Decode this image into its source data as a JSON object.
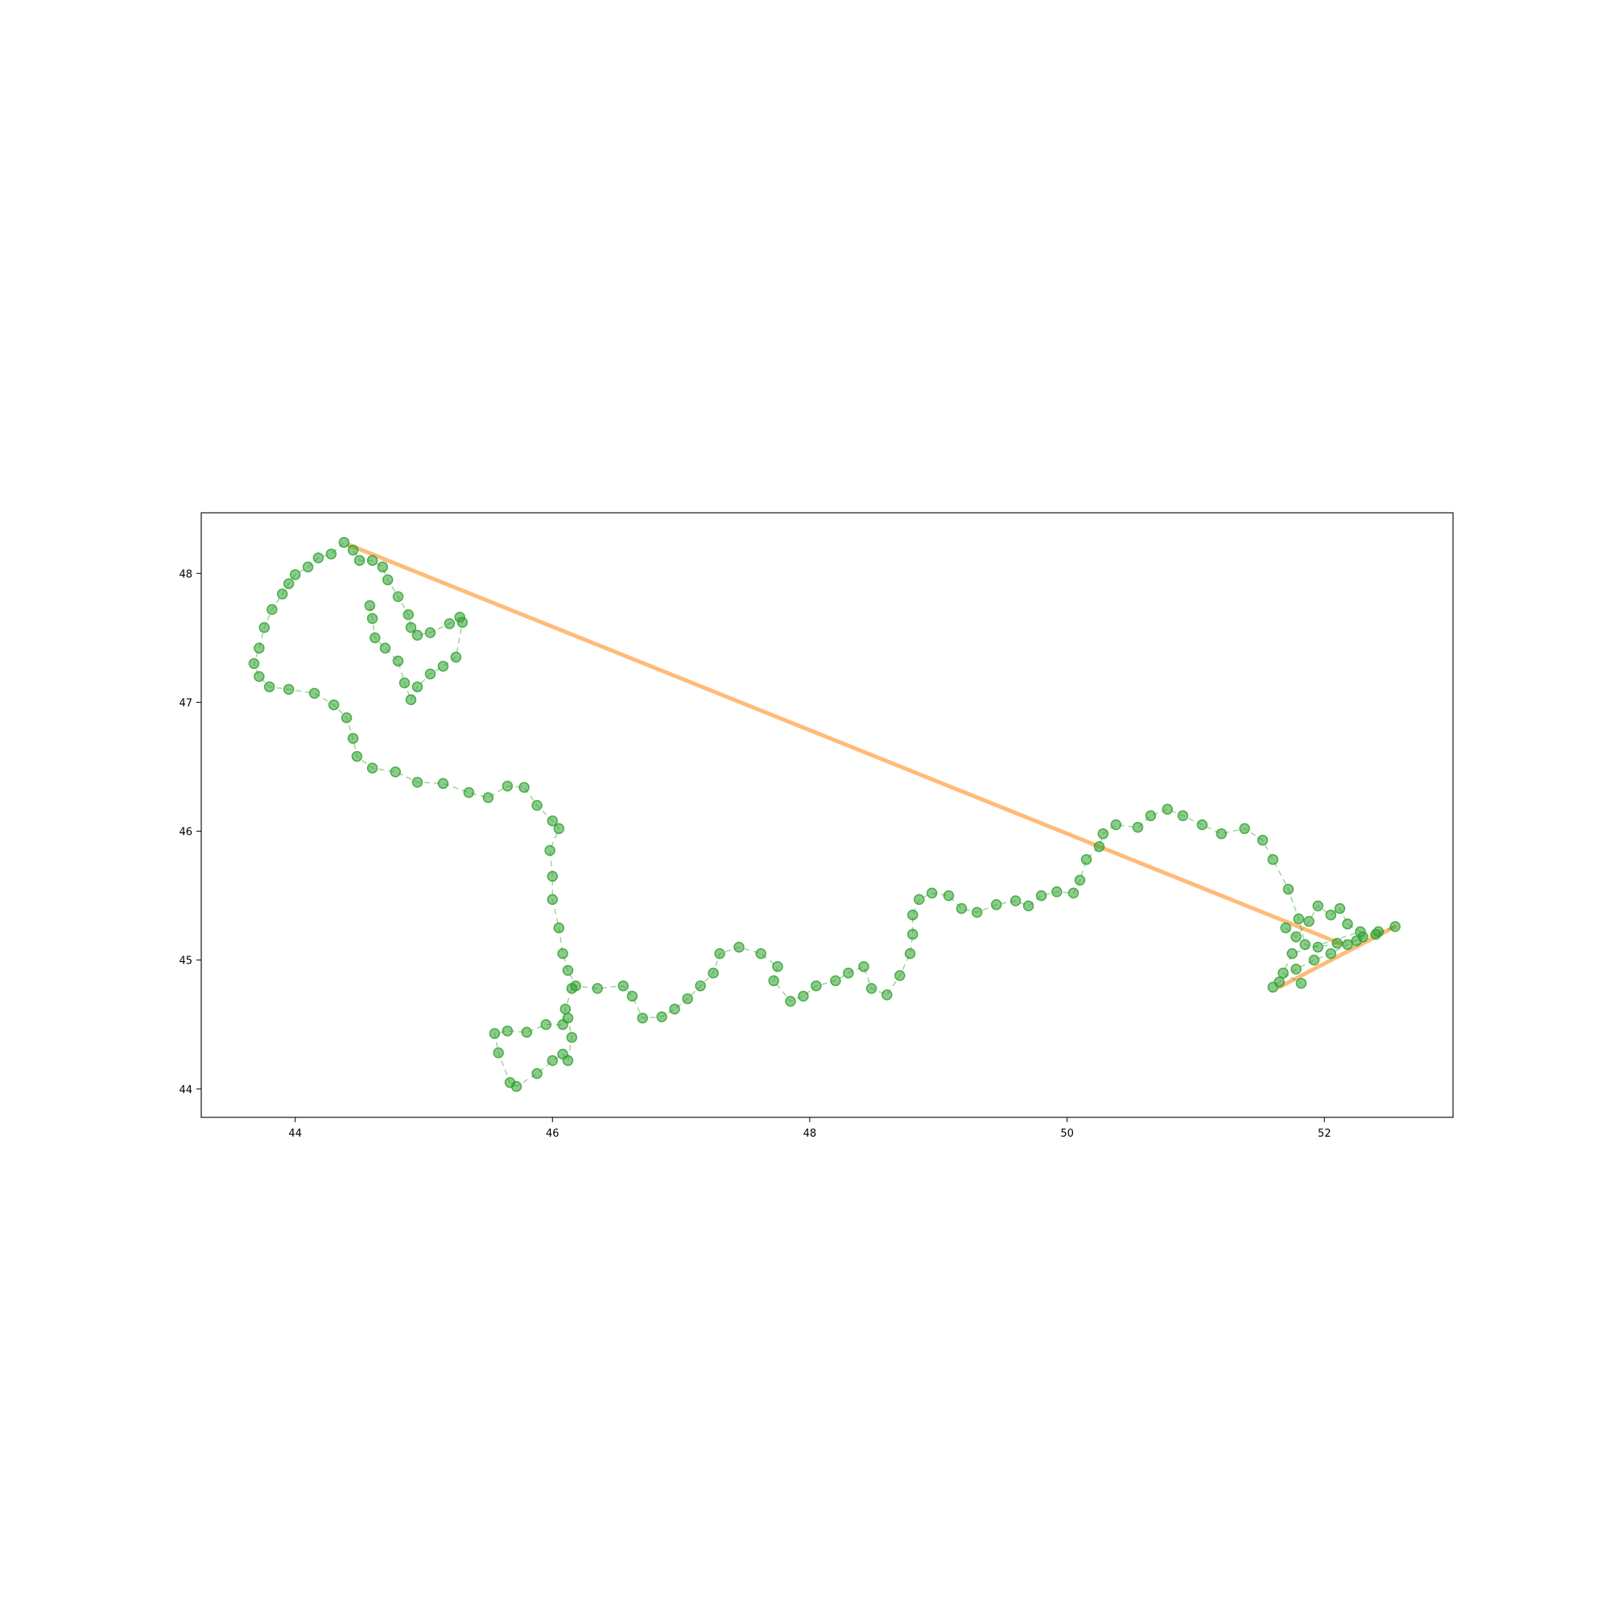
{
  "chart_data": {
    "type": "scatter",
    "title": "",
    "xlabel": "",
    "ylabel": "",
    "xlim": [
      43.27,
      53.0
    ],
    "ylim": [
      43.78,
      48.47
    ],
    "x_ticks": [
      44,
      46,
      48,
      50,
      52
    ],
    "y_ticks": [
      44,
      45,
      46,
      47,
      48
    ],
    "x_tick_labels": [
      "44",
      "46",
      "48",
      "50",
      "52"
    ],
    "y_tick_labels": [
      "44",
      "45",
      "46",
      "47",
      "48"
    ],
    "grid": false,
    "legend": "none",
    "colors": {
      "track": "#2ca02c",
      "straight_line": "#ffbb78",
      "frame": "#000000"
    },
    "series": [
      {
        "kind": "line",
        "points": [
          [
            44.42,
            48.22
          ],
          [
            52.12,
            45.13
          ]
        ]
      },
      {
        "kind": "line",
        "points": [
          [
            51.65,
            44.79
          ],
          [
            52.55,
            45.26
          ]
        ]
      },
      {
        "kind": "scatter-line",
        "points": [
          [
            45.28,
            47.66
          ],
          [
            45.2,
            47.61
          ],
          [
            45.05,
            47.54
          ],
          [
            44.95,
            47.52
          ],
          [
            44.9,
            47.58
          ],
          [
            44.88,
            47.68
          ],
          [
            44.8,
            47.82
          ],
          [
            44.72,
            47.95
          ],
          [
            44.68,
            48.05
          ],
          [
            44.6,
            48.1
          ],
          [
            44.5,
            48.1
          ],
          [
            44.45,
            48.18
          ],
          [
            44.38,
            48.24
          ],
          [
            44.28,
            48.15
          ],
          [
            44.18,
            48.12
          ],
          [
            44.1,
            48.05
          ],
          [
            44.0,
            47.99
          ],
          [
            43.95,
            47.92
          ],
          [
            43.9,
            47.84
          ],
          [
            43.82,
            47.72
          ],
          [
            43.76,
            47.58
          ],
          [
            43.72,
            47.42
          ],
          [
            43.68,
            47.3
          ],
          [
            43.72,
            47.2
          ],
          [
            43.8,
            47.12
          ],
          [
            43.95,
            47.1
          ],
          [
            44.15,
            47.07
          ],
          [
            44.3,
            46.98
          ],
          [
            44.4,
            46.88
          ],
          [
            44.45,
            46.72
          ],
          [
            44.48,
            46.58
          ],
          [
            44.6,
            46.49
          ],
          [
            44.78,
            46.46
          ],
          [
            44.95,
            46.38
          ],
          [
            45.15,
            46.37
          ],
          [
            45.35,
            46.3
          ],
          [
            45.5,
            46.26
          ],
          [
            45.65,
            46.35
          ],
          [
            45.78,
            46.34
          ],
          [
            45.88,
            46.2
          ],
          [
            46.0,
            46.08
          ],
          [
            46.05,
            46.02
          ],
          [
            45.98,
            45.85
          ],
          [
            46.0,
            45.65
          ],
          [
            46.0,
            45.47
          ],
          [
            46.05,
            45.25
          ],
          [
            46.08,
            45.05
          ],
          [
            46.12,
            44.92
          ],
          [
            46.18,
            44.8
          ],
          [
            46.35,
            44.78
          ],
          [
            46.55,
            44.8
          ],
          [
            46.62,
            44.72
          ],
          [
            46.7,
            44.55
          ],
          [
            46.85,
            44.56
          ],
          [
            46.95,
            44.62
          ],
          [
            47.05,
            44.7
          ],
          [
            47.15,
            44.8
          ],
          [
            47.25,
            44.9
          ],
          [
            47.3,
            45.05
          ],
          [
            47.45,
            45.1
          ],
          [
            47.62,
            45.05
          ],
          [
            47.75,
            44.95
          ],
          [
            47.72,
            44.84
          ],
          [
            47.85,
            44.68
          ],
          [
            47.95,
            44.72
          ],
          [
            48.05,
            44.8
          ],
          [
            48.2,
            44.84
          ],
          [
            48.3,
            44.9
          ],
          [
            48.42,
            44.95
          ],
          [
            48.48,
            44.78
          ],
          [
            48.6,
            44.73
          ],
          [
            48.7,
            44.88
          ],
          [
            48.78,
            45.05
          ],
          [
            48.8,
            45.2
          ],
          [
            48.8,
            45.35
          ],
          [
            48.85,
            45.47
          ],
          [
            48.95,
            45.52
          ],
          [
            49.08,
            45.5
          ],
          [
            49.18,
            45.4
          ],
          [
            49.3,
            45.37
          ],
          [
            49.45,
            45.43
          ],
          [
            49.6,
            45.46
          ],
          [
            49.7,
            45.42
          ],
          [
            49.8,
            45.5
          ],
          [
            49.92,
            45.53
          ],
          [
            50.05,
            45.52
          ],
          [
            50.1,
            45.62
          ],
          [
            50.15,
            45.78
          ],
          [
            50.25,
            45.88
          ],
          [
            50.28,
            45.98
          ],
          [
            50.38,
            46.05
          ],
          [
            50.55,
            46.03
          ],
          [
            50.65,
            46.12
          ],
          [
            50.78,
            46.17
          ],
          [
            50.9,
            46.12
          ],
          [
            51.05,
            46.05
          ],
          [
            51.2,
            45.98
          ],
          [
            51.38,
            46.02
          ],
          [
            51.52,
            45.93
          ],
          [
            51.6,
            45.78
          ],
          [
            51.72,
            45.55
          ],
          [
            51.8,
            45.32
          ],
          [
            51.85,
            45.12
          ],
          [
            51.95,
            45.1
          ],
          [
            52.1,
            45.13
          ],
          [
            52.25,
            45.15
          ],
          [
            52.4,
            45.2
          ],
          [
            52.55,
            45.26
          ],
          [
            52.42,
            45.22
          ],
          [
            52.3,
            45.18
          ],
          [
            52.18,
            45.12
          ],
          [
            52.05,
            45.05
          ],
          [
            51.92,
            45.0
          ],
          [
            51.78,
            44.93
          ],
          [
            51.65,
            44.83
          ],
          [
            51.6,
            44.79
          ]
        ]
      },
      {
        "kind": "scatter-line",
        "points": [
          [
            46.15,
            44.78
          ],
          [
            46.1,
            44.62
          ],
          [
            46.08,
            44.5
          ],
          [
            45.95,
            44.5
          ],
          [
            45.8,
            44.44
          ],
          [
            45.65,
            44.45
          ],
          [
            45.55,
            44.43
          ],
          [
            45.58,
            44.28
          ],
          [
            45.67,
            44.05
          ],
          [
            45.72,
            44.02
          ],
          [
            45.88,
            44.12
          ],
          [
            46.0,
            44.22
          ],
          [
            46.08,
            44.27
          ],
          [
            46.12,
            44.22
          ],
          [
            46.15,
            44.4
          ],
          [
            46.12,
            44.55
          ]
        ]
      },
      {
        "kind": "scatter-line",
        "points": [
          [
            44.58,
            47.75
          ],
          [
            44.6,
            47.65
          ],
          [
            44.62,
            47.5
          ],
          [
            44.7,
            47.42
          ],
          [
            44.8,
            47.32
          ],
          [
            44.85,
            47.15
          ],
          [
            44.9,
            47.02
          ],
          [
            44.95,
            47.12
          ],
          [
            45.05,
            47.22
          ],
          [
            45.15,
            47.28
          ],
          [
            45.25,
            47.35
          ],
          [
            45.3,
            47.62
          ]
        ]
      },
      {
        "kind": "scatter-line",
        "points": [
          [
            51.7,
            45.25
          ],
          [
            51.78,
            45.18
          ],
          [
            51.88,
            45.3
          ],
          [
            51.95,
            45.42
          ],
          [
            52.05,
            45.35
          ],
          [
            52.12,
            45.4
          ],
          [
            52.18,
            45.28
          ],
          [
            52.28,
            45.22
          ],
          [
            51.75,
            45.05
          ],
          [
            51.68,
            44.9
          ],
          [
            51.82,
            44.82
          ]
        ]
      }
    ]
  }
}
